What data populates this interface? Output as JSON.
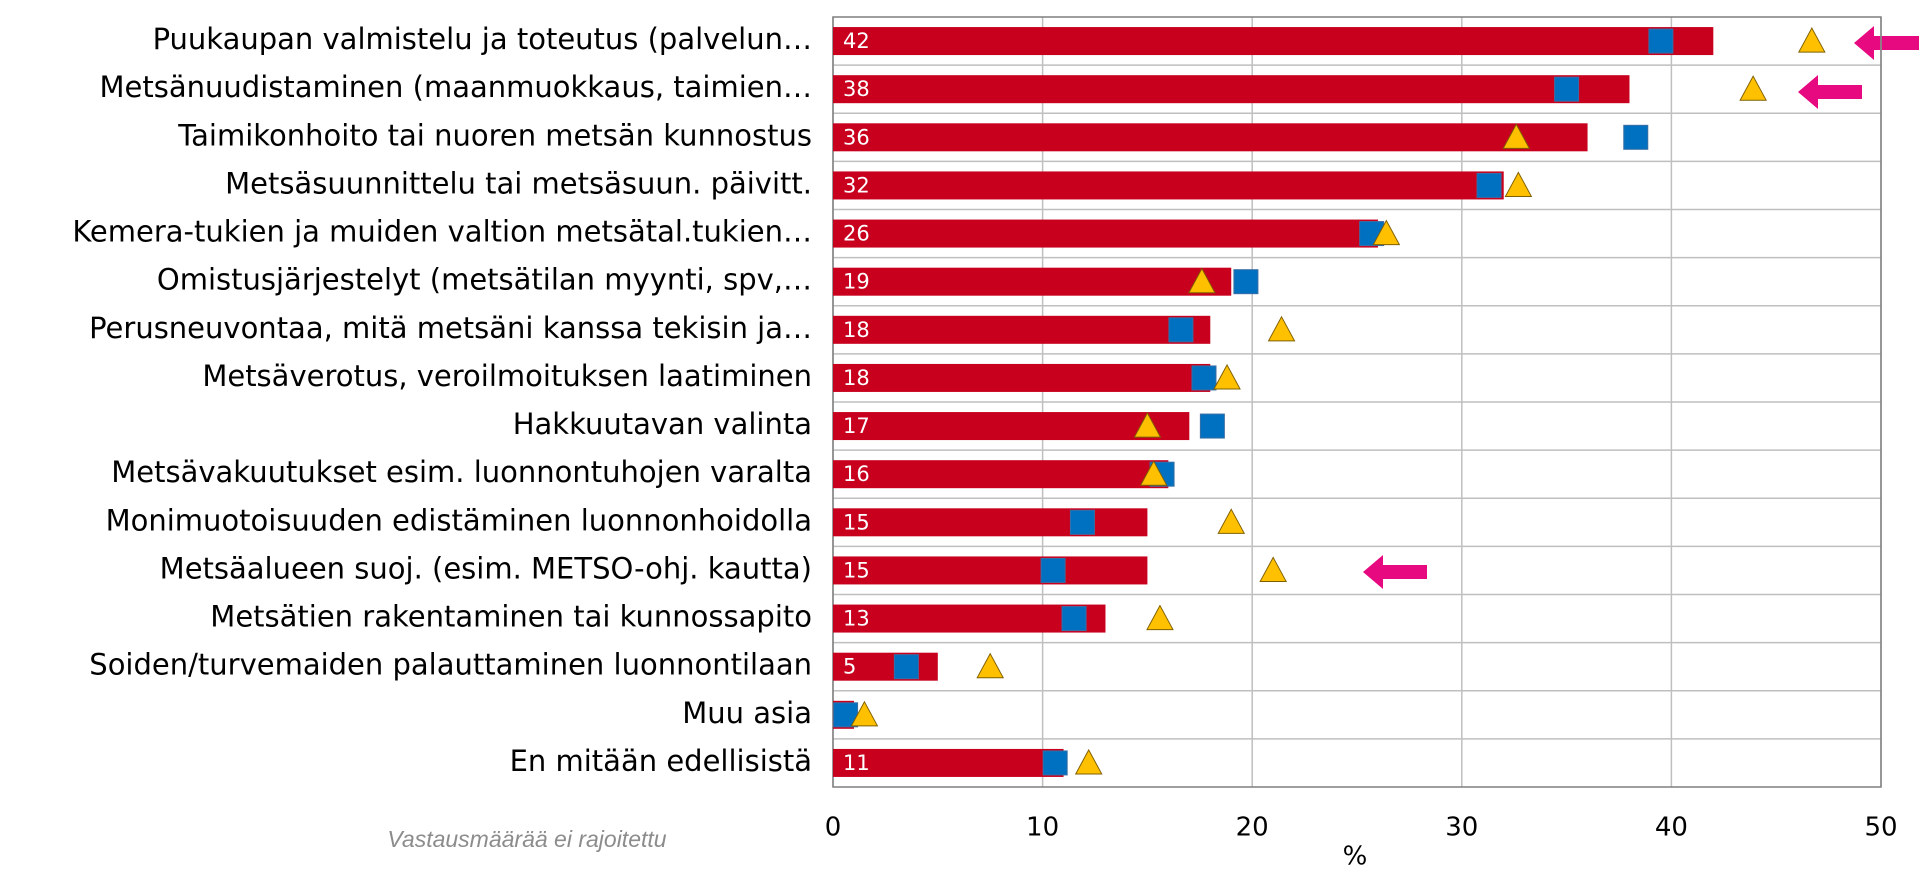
{
  "chart_data": {
    "type": "bar",
    "orientation": "horizontal",
    "categories": [
      "Puukaupan valmistelu ja toteutus (palvelun…",
      "Metsänuudistaminen (maanmuokkaus, taimien…",
      "Taimikonhoito tai nuoren metsän kunnostus",
      "Metsäsuunnittelu tai metsäsuun. päivitt.",
      "Kemera-tukien ja muiden valtion metsätal.tukien…",
      "Omistusjärjestelyt (metsätilan myynti, spv,…",
      "Perusneuvontaa, mitä metsäni kanssa tekisin ja…",
      "Metsäverotus, veroilmoituksen laatiminen",
      "Hakkuutavan valinta",
      "Metsävakuutukset esim. luonnontuhojen varalta",
      "Monimuotoisuuden edistäminen luonnonhoidolla",
      "Metsäalueen suoj. (esim. METSO-ohj. kautta)",
      "Metsätien rakentaminen tai kunnossapito",
      "Soiden/turvemaiden palauttaminen luonnontilaan",
      "Muu asia",
      "En mitään edellisistä"
    ],
    "series": [
      {
        "type": "bar",
        "color": "#c8001e",
        "values": [
          42,
          38,
          36,
          32,
          26,
          19,
          18,
          18,
          17,
          16,
          15,
          15,
          13,
          5,
          1,
          11
        ]
      },
      {
        "type": "square",
        "color": "#0070c0",
        "values": [
          39.5,
          35.0,
          38.3,
          31.3,
          25.7,
          19.7,
          16.6,
          17.7,
          18.1,
          15.7,
          11.9,
          10.5,
          11.5,
          3.5,
          0.6,
          10.6
        ]
      },
      {
        "type": "triangle",
        "color": "#ffc000",
        "values": [
          46.7,
          43.9,
          32.6,
          32.7,
          26.4,
          17.6,
          21.4,
          18.8,
          15.0,
          15.3,
          19.0,
          21.0,
          15.6,
          7.5,
          1.5,
          12.2
        ]
      }
    ],
    "xlim": [
      0,
      50
    ],
    "xticks": [
      0,
      10,
      20,
      30,
      40,
      50
    ],
    "xlabel": "%",
    "grid": true,
    "note": "Vastausmäärää ei rajoitettu"
  }
}
